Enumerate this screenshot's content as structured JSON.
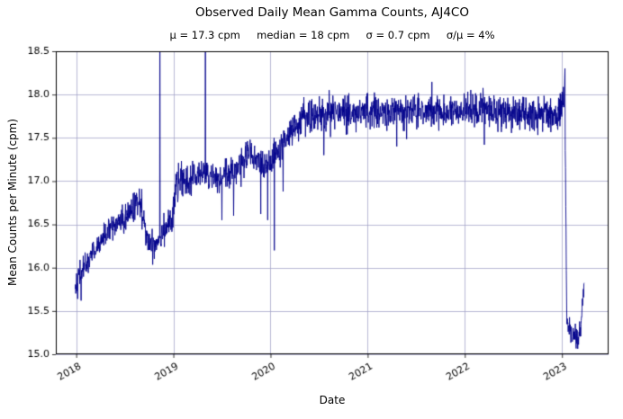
{
  "chart_data": {
    "type": "line",
    "title": "Observed Daily Mean Gamma Counts, AJ4CO",
    "stats_text": "μ = 17.3 cpm     median = 18 cpm     σ = 0.7 cpm     σ/μ = 4%",
    "stats": {
      "mu": "17.3 cpm",
      "median": "18 cpm",
      "sigma": "0.7 cpm",
      "sigma_over_mu": "4%"
    },
    "xlabel": "Date",
    "ylabel": "Mean Counts per Minute (cpm)",
    "xlim": [
      2017.79,
      2023.48
    ],
    "ylim": [
      15.0,
      18.5
    ],
    "xticks": [
      2018,
      2019,
      2020,
      2021,
      2022,
      2023
    ],
    "xtick_labels": [
      "2018",
      "2019",
      "2020",
      "2021",
      "2022",
      "2023"
    ],
    "yticks": [
      15.0,
      15.5,
      16.0,
      16.5,
      17.0,
      17.5,
      18.0,
      18.5
    ],
    "ytick_labels": [
      "15.0",
      "15.5",
      "16.0",
      "16.5",
      "17.0",
      "17.5",
      "18.0",
      "18.5"
    ],
    "grid": true,
    "legend": "none",
    "line_color": "#00008b",
    "grid_color": "#a6a6c9",
    "spine_color": "#000000",
    "seed": 42,
    "x_start": 2017.99,
    "x_end": 2023.23,
    "points_per_year": 365,
    "trend_anchors": [
      [
        2017.99,
        15.82
      ],
      [
        2018.03,
        15.9
      ],
      [
        2018.1,
        16.05
      ],
      [
        2018.22,
        16.25
      ],
      [
        2018.35,
        16.45
      ],
      [
        2018.5,
        16.55
      ],
      [
        2018.6,
        16.7
      ],
      [
        2018.65,
        16.85
      ],
      [
        2018.72,
        16.35
      ],
      [
        2018.8,
        16.25
      ],
      [
        2018.9,
        16.45
      ],
      [
        2018.99,
        16.55
      ],
      [
        2019.03,
        16.95
      ],
      [
        2019.15,
        17.0
      ],
      [
        2019.3,
        17.1
      ],
      [
        2019.45,
        17.0
      ],
      [
        2019.6,
        17.1
      ],
      [
        2019.8,
        17.3
      ],
      [
        2019.95,
        17.15
      ],
      [
        2020.0,
        17.2
      ],
      [
        2020.1,
        17.35
      ],
      [
        2020.22,
        17.6
      ],
      [
        2020.32,
        17.72
      ],
      [
        2020.6,
        17.78
      ],
      [
        2021.0,
        17.8
      ],
      [
        2021.5,
        17.8
      ],
      [
        2022.0,
        17.82
      ],
      [
        2022.5,
        17.8
      ],
      [
        2022.95,
        17.75
      ],
      [
        2023.0,
        17.85
      ],
      [
        2023.03,
        18.05
      ],
      [
        2023.05,
        15.35
      ],
      [
        2023.12,
        15.2
      ],
      [
        2023.19,
        15.22
      ],
      [
        2023.23,
        15.95
      ]
    ],
    "noise_sd_segments": [
      {
        "until": 2018.45,
        "sd": 0.07
      },
      {
        "until": 2020.25,
        "sd": 0.09
      },
      {
        "until": 2023.04,
        "sd": 0.1
      },
      {
        "until": 2023.5,
        "sd": 0.07
      }
    ],
    "spikes": [
      {
        "x": 2018.05,
        "v": 15.62
      },
      {
        "x": 2018.86,
        "v": 19.5
      },
      {
        "x": 2019.33,
        "v": 19.3
      },
      {
        "x": 2019.5,
        "v": 16.55
      },
      {
        "x": 2019.62,
        "v": 16.6
      },
      {
        "x": 2019.9,
        "v": 16.62
      },
      {
        "x": 2019.97,
        "v": 16.55
      },
      {
        "x": 2020.04,
        "v": 16.2
      },
      {
        "x": 2020.13,
        "v": 16.88
      },
      {
        "x": 2020.55,
        "v": 17.3
      },
      {
        "x": 2021.3,
        "v": 17.4
      },
      {
        "x": 2022.2,
        "v": 17.42
      },
      {
        "x": 2023.03,
        "v": 18.3
      }
    ]
  }
}
